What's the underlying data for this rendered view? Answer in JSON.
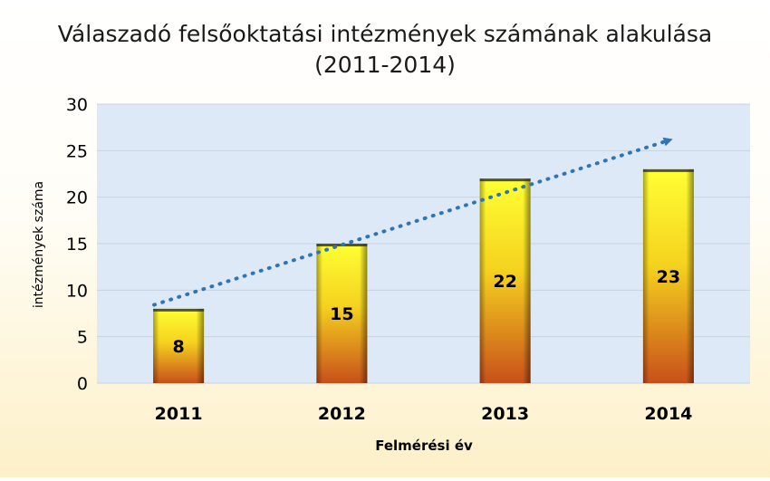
{
  "chart_data": {
    "type": "bar",
    "title": "Válaszadó felsőoktatási intézmények számának alakulása",
    "subtitle": "(2011-2014)",
    "xlabel": "Felmérési év",
    "ylabel": "intézmények száma",
    "categories": [
      "2011",
      "2012",
      "2013",
      "2014"
    ],
    "values": [
      8,
      15,
      22,
      23
    ],
    "data_labels": [
      "8",
      "15",
      "22",
      "23"
    ],
    "ylim": [
      0,
      30
    ],
    "yticks": [
      "0",
      "5",
      "10",
      "15",
      "20",
      "25",
      "30"
    ],
    "grid": true,
    "legend": "none",
    "trendline": {
      "style": "dotted",
      "arrow": true
    },
    "colors": {
      "plot_background": "#dde9f6",
      "gridline": "#c7d3e0",
      "bar_top": "#ffff33",
      "bar_bottom": "#c8501a",
      "trendline": "#2e75b6"
    }
  }
}
